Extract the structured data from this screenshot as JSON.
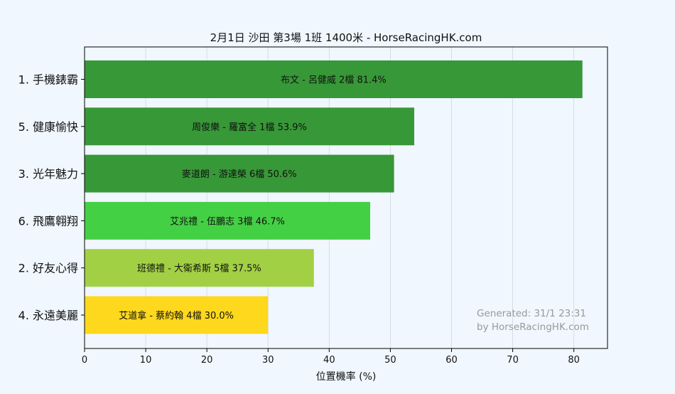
{
  "chart_data": {
    "type": "bar",
    "orientation": "horizontal",
    "title": "2月1日  沙田  第3場  1班  1400米 - HorseRacingHK.com",
    "xlabel": "位置機率 (%)",
    "ylabel": "",
    "xlim": [
      0,
      85.5
    ],
    "xticks": [
      "0",
      "10",
      "20",
      "30",
      "40",
      "50",
      "60",
      "70",
      "80"
    ],
    "grid": "vertical",
    "categories": [
      "1. 手機錶霸",
      "5. 健康愉快",
      "3. 光年魅力",
      "6. 飛鷹翱翔",
      "2. 好友心得",
      "4. 永遠美麗"
    ],
    "values": [
      81.4,
      53.9,
      50.6,
      46.7,
      37.5,
      30.0
    ],
    "bar_labels": [
      "布文 - 呂健威 2檔  81.4%",
      "周俊樂 - 羅富全 1檔  53.9%",
      "麥道朗 - 游達榮 6檔  50.6%",
      "艾兆禮 - 伍鵬志 3檔  46.7%",
      "班德禮 - 大衛希斯 5檔  37.5%",
      "艾道拿 - 蔡約翰 4檔  30.0%"
    ],
    "colors": [
      "#379837",
      "#379837",
      "#379837",
      "#44d044",
      "#a2d044",
      "#fdd81c"
    ]
  },
  "footer": {
    "line1": "Generated: 31/1 23:31",
    "line2": "by HorseRacingHK.com"
  }
}
